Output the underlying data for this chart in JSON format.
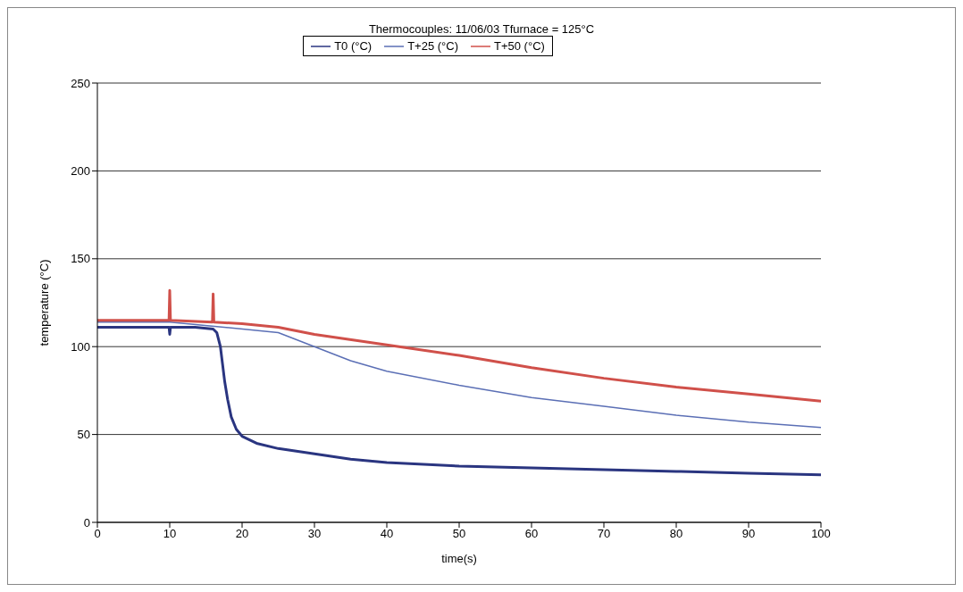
{
  "chart_data": {
    "type": "line",
    "title": "Thermocouples: 11/06/03 Tfurnace = 125°C",
    "xlabel": "time(s)",
    "ylabel": "temperature (°C)",
    "xlim": [
      0,
      100
    ],
    "xticks": [
      0,
      10,
      20,
      30,
      40,
      50,
      60,
      70,
      80,
      90,
      100
    ],
    "ylim": [
      0,
      250
    ],
    "yticks": [
      0,
      50,
      100,
      150,
      200,
      250
    ],
    "grid": "y",
    "legend": "top",
    "line_style": "solid",
    "series": [
      {
        "name": "T0 (°C)",
        "color": "#2a3580",
        "x": [
          0,
          9.9,
          10,
          10.1,
          13.5,
          16,
          16.5,
          17,
          17.3,
          17.6,
          18,
          18.5,
          19.2,
          20,
          22,
          25,
          30,
          35,
          40,
          50,
          60,
          70,
          80,
          90,
          100
        ],
        "values": [
          111,
          111,
          107,
          111,
          111,
          110,
          108,
          100,
          90,
          80,
          70,
          60,
          53,
          49,
          45,
          42,
          39,
          36,
          34,
          32,
          31,
          30,
          29,
          28,
          27
        ]
      },
      {
        "name": "T+25 (°C)",
        "color": "#5b6fb5",
        "x": [
          0,
          10,
          25,
          30,
          35,
          40,
          50,
          60,
          70,
          80,
          90,
          100
        ],
        "values": [
          114,
          114,
          108,
          100,
          92,
          86,
          78,
          71,
          66,
          61,
          57,
          54
        ]
      },
      {
        "name": "T+50 (°C)",
        "color": "#d0504a",
        "x": [
          0,
          9.9,
          10,
          10.1,
          15.9,
          16,
          16.1,
          20,
          25,
          30,
          40,
          50,
          60,
          70,
          80,
          90,
          100
        ],
        "values": [
          115,
          115,
          132,
          115,
          114,
          130,
          114,
          113,
          111,
          107,
          101,
          95,
          88,
          82,
          77,
          73,
          69
        ]
      }
    ]
  }
}
